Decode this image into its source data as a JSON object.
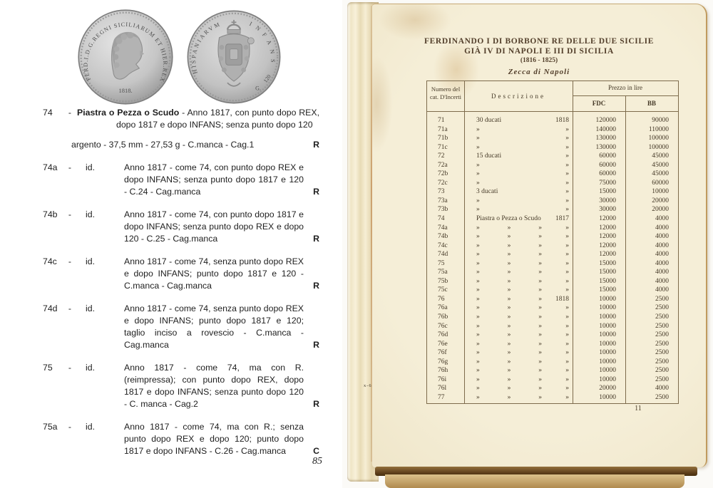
{
  "left_page": {
    "page_number": "85",
    "coins": {
      "obverse_legend": "FERD.I.D.G.REGNI SICILIARUM ET HIER.REX",
      "obverse_date": "1818.",
      "reverse_legend_left": "HISPANIARVM",
      "reverse_legend_right": "INFANS",
      "reverse_value": "120",
      "reverse_grain_letter": "G."
    },
    "entries": [
      {
        "num": "74",
        "id": null,
        "name": "Piastra o Pezza o Scudo",
        "desc": "- Anno 1817, con punto dopo REX, dopo 1817 e dopo INFANS; senza punto dopo 120",
        "spec": "argento - 37,5 mm - 27,53 g - C.manca - Cag.1",
        "rarity": "R"
      },
      {
        "num": "74a",
        "id": "id.",
        "desc": "Anno 1817 - come 74, con punto dopo REX e dopo INFANS; senza punto dopo 1817 e 120 - C.24 - Cag.manca",
        "rarity": "R"
      },
      {
        "num": "74b",
        "id": "id.",
        "desc": "Anno 1817 - come 74, con punto dopo 1817 e dopo INFANS; senza punto dopo REX e dopo 120 - C.25 - Cag.manca",
        "rarity": "R"
      },
      {
        "num": "74c",
        "id": "id.",
        "desc": "Anno 1817 - come 74, senza punto dopo REX e dopo INFANS; punto dopo 1817 e 120 - C.manca - Cag.manca",
        "rarity": "R"
      },
      {
        "num": "74d",
        "id": "id.",
        "desc": "Anno 1817 - come 74, senza punto dopo REX e dopo INFANS; punto dopo 1817 e 120; taglio inciso a rovescio - C.manca - Cag.manca",
        "rarity": "R"
      },
      {
        "num": "75",
        "id": "id.",
        "desc": "Anno 1817 - come 74, ma con R. (reimpressa); con punto dopo REX, dopo 1817 e dopo INFANS; senza punto dopo 120 - C. manca - Cag.2",
        "rarity": "R"
      },
      {
        "num": "75a",
        "id": "id.",
        "desc": "Anno 1817 - come 74, ma con R.; senza punto dopo REX e dopo 120; punto dopo 1817 e dopo INFANS - C.26 - Cag.manca",
        "rarity": "C"
      }
    ]
  },
  "right_page": {
    "title_line1": "FERDINANDO I DI BORBONE RE DELLE DUE SICILIE",
    "title_line2": "GIÀ IV DI NAPOLI E III DI SICILIA",
    "title_line3": "(1816 - 1825)",
    "subtitle": "Zecca di Napoli",
    "page_number": "11",
    "margin_mark": "x-6",
    "table": {
      "col1_header_line1": "Numero del",
      "col1_header_line2": "cat. D'Incerti",
      "col2_header": "Descrizione",
      "price_group_header": "Prezzo in lire",
      "fdc_header": "FDC",
      "bb_header": "BB",
      "rows": [
        {
          "num": "71",
          "desc": [
            "30 ducati"
          ],
          "year": "1818",
          "fdc": "120000",
          "bb": "90000"
        },
        {
          "num": "71a",
          "desc": [
            "»"
          ],
          "year": "»",
          "fdc": "140000",
          "bb": "110000"
        },
        {
          "num": "71b",
          "desc": [
            "»"
          ],
          "year": "»",
          "fdc": "130000",
          "bb": "100000"
        },
        {
          "num": "71c",
          "desc": [
            "»"
          ],
          "year": "»",
          "fdc": "130000",
          "bb": "100000"
        },
        {
          "num": "72",
          "desc": [
            "15 ducati"
          ],
          "year": "»",
          "fdc": "60000",
          "bb": "45000"
        },
        {
          "num": "72a",
          "desc": [
            "»"
          ],
          "year": "»",
          "fdc": "60000",
          "bb": "45000"
        },
        {
          "num": "72b",
          "desc": [
            "»"
          ],
          "year": "»",
          "fdc": "60000",
          "bb": "45000"
        },
        {
          "num": "72c",
          "desc": [
            "»"
          ],
          "year": "»",
          "fdc": "75000",
          "bb": "60000"
        },
        {
          "num": "73",
          "desc": [
            "3 ducati"
          ],
          "year": "»",
          "fdc": "15000",
          "bb": "10000"
        },
        {
          "num": "73a",
          "desc": [
            "»"
          ],
          "year": "»",
          "fdc": "30000",
          "bb": "20000"
        },
        {
          "num": "73b",
          "desc": [
            "»"
          ],
          "year": "»",
          "fdc": "30000",
          "bb": "20000"
        },
        {
          "num": "74",
          "desc": [
            "Piastra o Pezza o Scudo"
          ],
          "year": "1817",
          "fdc": "12000",
          "bb": "4000"
        },
        {
          "num": "74a",
          "desc": [
            "»",
            "»",
            "»"
          ],
          "year": "»",
          "fdc": "12000",
          "bb": "4000"
        },
        {
          "num": "74b",
          "desc": [
            "»",
            "»",
            "»"
          ],
          "year": "»",
          "fdc": "12000",
          "bb": "4000"
        },
        {
          "num": "74c",
          "desc": [
            "»",
            "»",
            "»"
          ],
          "year": "»",
          "fdc": "12000",
          "bb": "4000"
        },
        {
          "num": "74d",
          "desc": [
            "»",
            "»",
            "»"
          ],
          "year": "»",
          "fdc": "12000",
          "bb": "4000"
        },
        {
          "num": "75",
          "desc": [
            "»",
            "»",
            "»"
          ],
          "year": "»",
          "fdc": "15000",
          "bb": "4000"
        },
        {
          "num": "75a",
          "desc": [
            "»",
            "»",
            "»"
          ],
          "year": "»",
          "fdc": "15000",
          "bb": "4000"
        },
        {
          "num": "75b",
          "desc": [
            "»",
            "»",
            "»"
          ],
          "year": "»",
          "fdc": "15000",
          "bb": "4000"
        },
        {
          "num": "75c",
          "desc": [
            "»",
            "»",
            "»"
          ],
          "year": "»",
          "fdc": "15000",
          "bb": "4000"
        },
        {
          "num": "76",
          "desc": [
            "»",
            "»",
            "»"
          ],
          "year": "1818",
          "fdc": "10000",
          "bb": "2500"
        },
        {
          "num": "76a",
          "desc": [
            "»",
            "»",
            "»"
          ],
          "year": "»",
          "fdc": "10000",
          "bb": "2500"
        },
        {
          "num": "76b",
          "desc": [
            "»",
            "»",
            "»"
          ],
          "year": "»",
          "fdc": "10000",
          "bb": "2500"
        },
        {
          "num": "76c",
          "desc": [
            "»",
            "»",
            "»"
          ],
          "year": "»",
          "fdc": "10000",
          "bb": "2500"
        },
        {
          "num": "76d",
          "desc": [
            "»",
            "»",
            "»"
          ],
          "year": "»",
          "fdc": "10000",
          "bb": "2500"
        },
        {
          "num": "76e",
          "desc": [
            "»",
            "»",
            "»"
          ],
          "year": "»",
          "fdc": "10000",
          "bb": "2500"
        },
        {
          "num": "76f",
          "desc": [
            "»",
            "»",
            "»"
          ],
          "year": "»",
          "fdc": "10000",
          "bb": "2500"
        },
        {
          "num": "76g",
          "desc": [
            "»",
            "»",
            "»"
          ],
          "year": "»",
          "fdc": "10000",
          "bb": "2500"
        },
        {
          "num": "76h",
          "desc": [
            "»",
            "»",
            "»"
          ],
          "year": "»",
          "fdc": "10000",
          "bb": "2500"
        },
        {
          "num": "76i",
          "desc": [
            "»",
            "»",
            "»"
          ],
          "year": "»",
          "fdc": "10000",
          "bb": "2500"
        },
        {
          "num": "76l",
          "desc": [
            "»",
            "»",
            "»"
          ],
          "year": "»",
          "fdc": "20000",
          "bb": "4000"
        },
        {
          "num": "77",
          "desc": [
            "»",
            "»",
            "»"
          ],
          "year": "»",
          "fdc": "10000",
          "bb": "2500"
        }
      ]
    }
  }
}
